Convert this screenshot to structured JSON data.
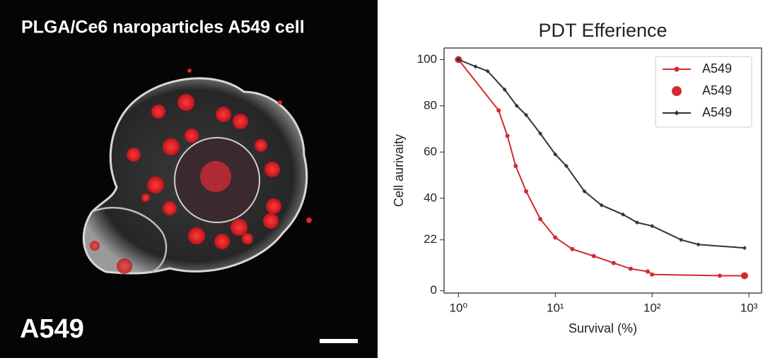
{
  "image_panel": {
    "title": "PLGA/Ce6 naroparticles A549 cell",
    "label": "A549"
  },
  "chart_data": {
    "type": "line",
    "title": "PDT Efferience",
    "xlabel": "Survival (%)",
    "ylabel": "Cell aurivaity",
    "xscale": "log",
    "xlim": [
      0.71,
      1350
    ],
    "ylim": [
      -1,
      105
    ],
    "xticks": [
      {
        "value": 1,
        "label": "10⁰"
      },
      {
        "value": 10,
        "label": "10¹"
      },
      {
        "value": 100,
        "label": "10²"
      },
      {
        "value": 1000,
        "label": "10³"
      }
    ],
    "yticks": [
      0,
      22,
      40,
      60,
      80,
      100
    ],
    "grid": false,
    "legend": "upper right",
    "series": [
      {
        "name": "A549",
        "color": "#d42a2f",
        "marker": "o",
        "kind": "line",
        "x": [
          1,
          2.6,
          3.2,
          3.9,
          5,
          7,
          10,
          15,
          25,
          40,
          60,
          90,
          100,
          500,
          900
        ],
        "values": [
          100,
          78,
          67,
          54,
          43,
          31,
          23,
          18,
          15,
          12,
          9.5,
          8.3,
          7,
          6.5,
          6.5
        ]
      },
      {
        "name": "A549",
        "color": "#d42a2f",
        "marker": "o",
        "kind": "scatter",
        "x": [
          1,
          900
        ],
        "values": [
          100,
          6.5
        ]
      },
      {
        "name": "A549",
        "color": "#2e3440",
        "marker": "D",
        "kind": "line",
        "x": [
          1,
          1.5,
          2,
          3,
          4,
          5,
          7,
          10,
          13,
          20,
          30,
          50,
          70,
          100,
          200,
          300,
          900
        ],
        "values": [
          100,
          97,
          95,
          87,
          80,
          76,
          68,
          59,
          54,
          43,
          37,
          33,
          29.5,
          28,
          22,
          20,
          18.5
        ]
      }
    ]
  }
}
